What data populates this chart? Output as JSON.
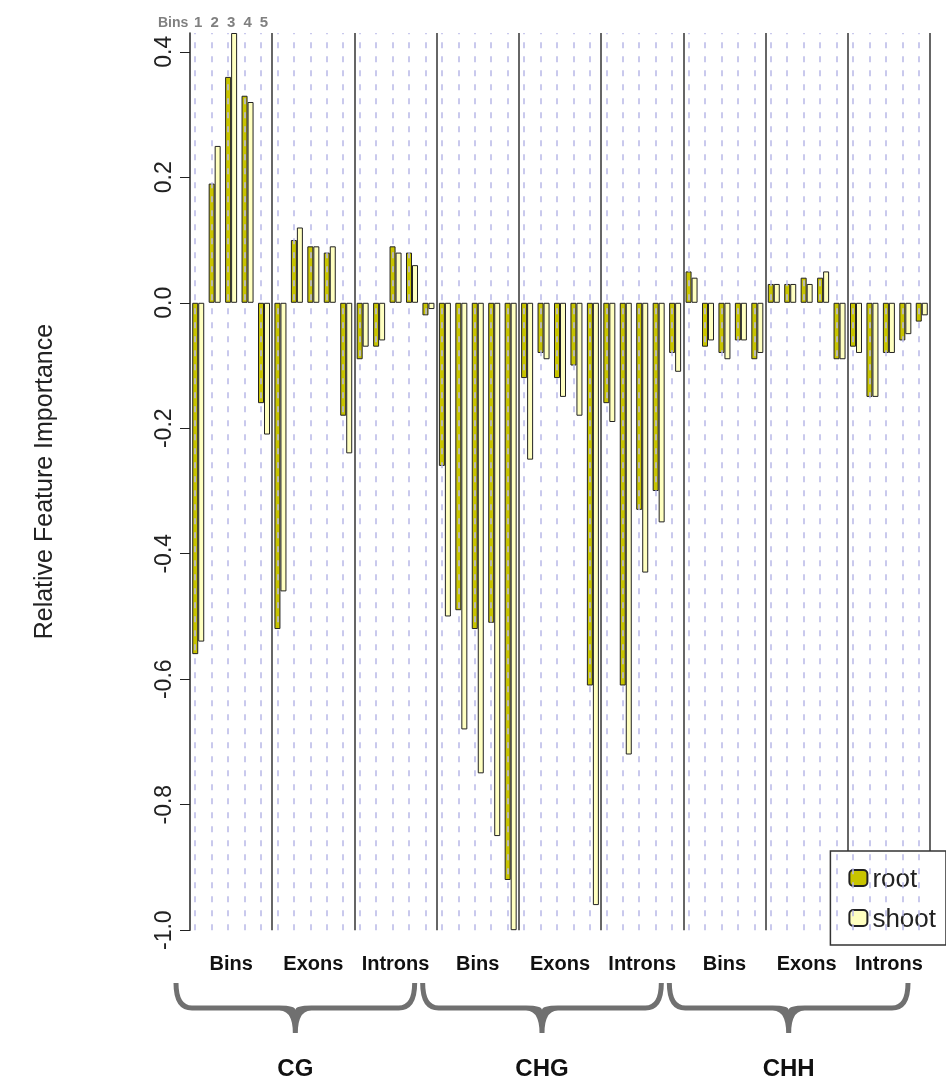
{
  "chart_data": {
    "type": "bar",
    "ylabel": "Relative Feature Importance",
    "categories": [
      "1",
      "2",
      "3",
      "4",
      "5",
      null,
      null,
      null,
      null,
      null,
      null,
      null,
      null,
      null,
      null,
      null,
      null,
      null,
      null,
      null,
      null,
      null,
      null,
      null,
      null,
      null,
      null,
      null,
      null,
      null,
      null,
      null,
      null,
      null,
      null,
      null,
      null,
      null,
      null,
      null,
      null,
      null,
      null,
      null,
      null
    ],
    "series": [
      {
        "name": "root",
        "color": "#c8c400",
        "values": [
          -0.56,
          0.19,
          0.36,
          0.33,
          -0.16,
          -0.52,
          0.1,
          0.09,
          0.08,
          -0.18,
          -0.09,
          -0.07,
          0.09,
          0.08,
          -0.02,
          -0.26,
          -0.49,
          -0.52,
          -0.51,
          -0.92,
          -0.12,
          -0.08,
          -0.12,
          -0.1,
          -0.61,
          -0.16,
          -0.61,
          -0.33,
          -0.3,
          -0.08,
          0.05,
          -0.07,
          -0.08,
          -0.06,
          -0.09,
          0.03,
          0.03,
          0.04,
          0.04,
          -0.09,
          -0.07,
          -0.15,
          -0.08,
          -0.06,
          -0.03
        ]
      },
      {
        "name": "shoot",
        "color": "#ffffc0",
        "values": [
          -0.54,
          0.25,
          0.43,
          0.32,
          -0.21,
          -0.46,
          0.12,
          0.09,
          0.09,
          -0.24,
          -0.07,
          -0.06,
          0.08,
          0.06,
          -0.01,
          -0.5,
          -0.68,
          -0.75,
          -0.85,
          -1.0,
          -0.25,
          -0.09,
          -0.15,
          -0.18,
          -0.96,
          -0.19,
          -0.72,
          -0.43,
          -0.35,
          -0.11,
          0.04,
          -0.06,
          -0.09,
          -0.06,
          -0.08,
          0.03,
          0.03,
          0.03,
          0.05,
          -0.09,
          -0.08,
          -0.15,
          -0.08,
          -0.05,
          -0.02
        ]
      }
    ],
    "ylim": [
      -1.0,
      0.43
    ],
    "yticks": [
      {
        "value": -1,
        "label": "-1.0"
      },
      -0.8,
      -0.6,
      -0.4,
      -0.2,
      {
        "value": 0,
        "label": "0.0"
      },
      0.2,
      0.4
    ],
    "grid": "x",
    "legend": "bottom right",
    "annotations": [
      "Bins",
      "Bins",
      "Exons",
      "Introns",
      "Bins",
      "Exons",
      "Introns",
      "Bins",
      "Exons",
      "Introns",
      "CG",
      "CHG",
      "CHH"
    ]
  }
}
